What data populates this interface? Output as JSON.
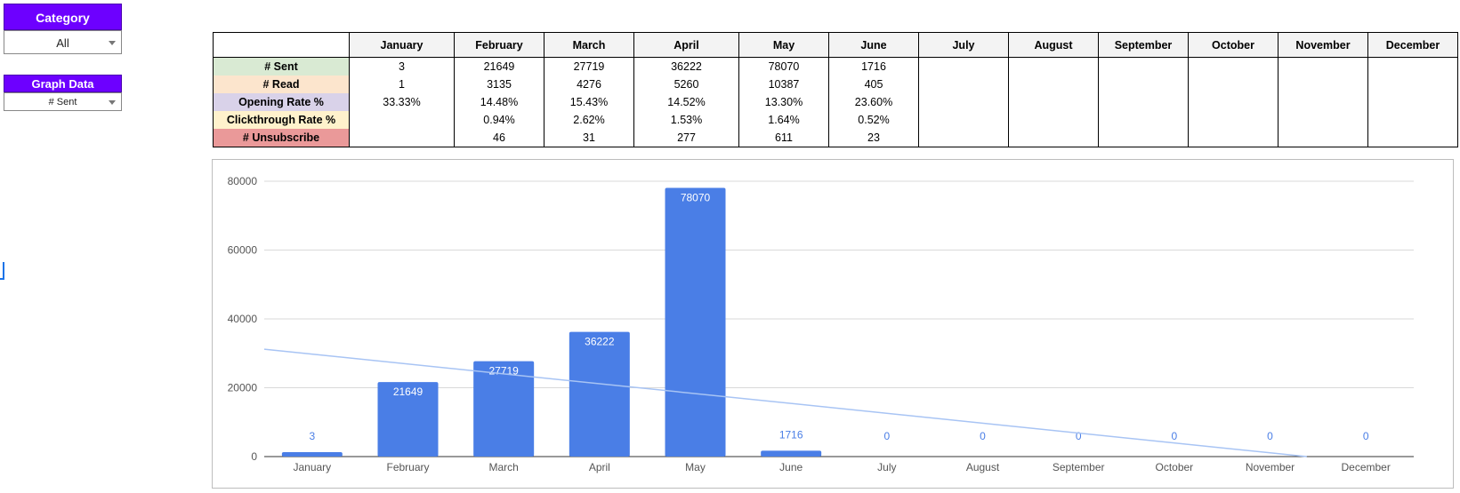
{
  "filters": {
    "category": {
      "title": "Category",
      "value": "All"
    },
    "graph_data": {
      "title": "Graph Data",
      "value": "# Sent"
    }
  },
  "table": {
    "months": [
      "January",
      "February",
      "March",
      "April",
      "May",
      "June",
      "July",
      "August",
      "September",
      "October",
      "November",
      "December"
    ],
    "rows": [
      {
        "label": "# Sent",
        "color": "#d9ead3",
        "values": [
          "3",
          "21649",
          "27719",
          "36222",
          "78070",
          "1716",
          "",
          "",
          "",
          "",
          "",
          ""
        ]
      },
      {
        "label": "# Read",
        "color": "#fce5cd",
        "values": [
          "1",
          "3135",
          "4276",
          "5260",
          "10387",
          "405",
          "",
          "",
          "",
          "",
          "",
          ""
        ]
      },
      {
        "label": "Opening Rate %",
        "color": "#d9d2e9",
        "values": [
          "33.33%",
          "14.48%",
          "15.43%",
          "14.52%",
          "13.30%",
          "23.60%",
          "",
          "",
          "",
          "",
          "",
          ""
        ]
      },
      {
        "label": "Clickthrough Rate %",
        "color": "#fff2cc",
        "values": [
          "",
          "0.94%",
          "2.62%",
          "1.53%",
          "1.64%",
          "0.52%",
          "",
          "",
          "",
          "",
          "",
          ""
        ]
      },
      {
        "label": "# Unsubscribe",
        "color": "#ea9999",
        "values": [
          "",
          "46",
          "31",
          "277",
          "611",
          "23",
          "",
          "",
          "",
          "",
          "",
          ""
        ]
      }
    ]
  },
  "chart_data": {
    "type": "bar",
    "categories": [
      "January",
      "February",
      "March",
      "April",
      "May",
      "June",
      "July",
      "August",
      "September",
      "October",
      "November",
      "December"
    ],
    "values": [
      3,
      21649,
      27719,
      36222,
      78070,
      1716,
      0,
      0,
      0,
      0,
      0,
      0
    ],
    "data_labels": [
      "3",
      "21649",
      "27719",
      "36222",
      "78070",
      "1716",
      "0",
      "0",
      "0",
      "0",
      "0",
      "0"
    ],
    "y_ticks": [
      0,
      20000,
      40000,
      60000,
      80000
    ],
    "ylim": [
      0,
      80000
    ],
    "trendline": {
      "start": 31200,
      "end": -3200
    },
    "grid": true,
    "colors": {
      "bar": "#4a7ee6",
      "trendline": "#a8c4f4",
      "label_outside": "#4a7ee6",
      "label_inside": "#ffffff"
    }
  }
}
